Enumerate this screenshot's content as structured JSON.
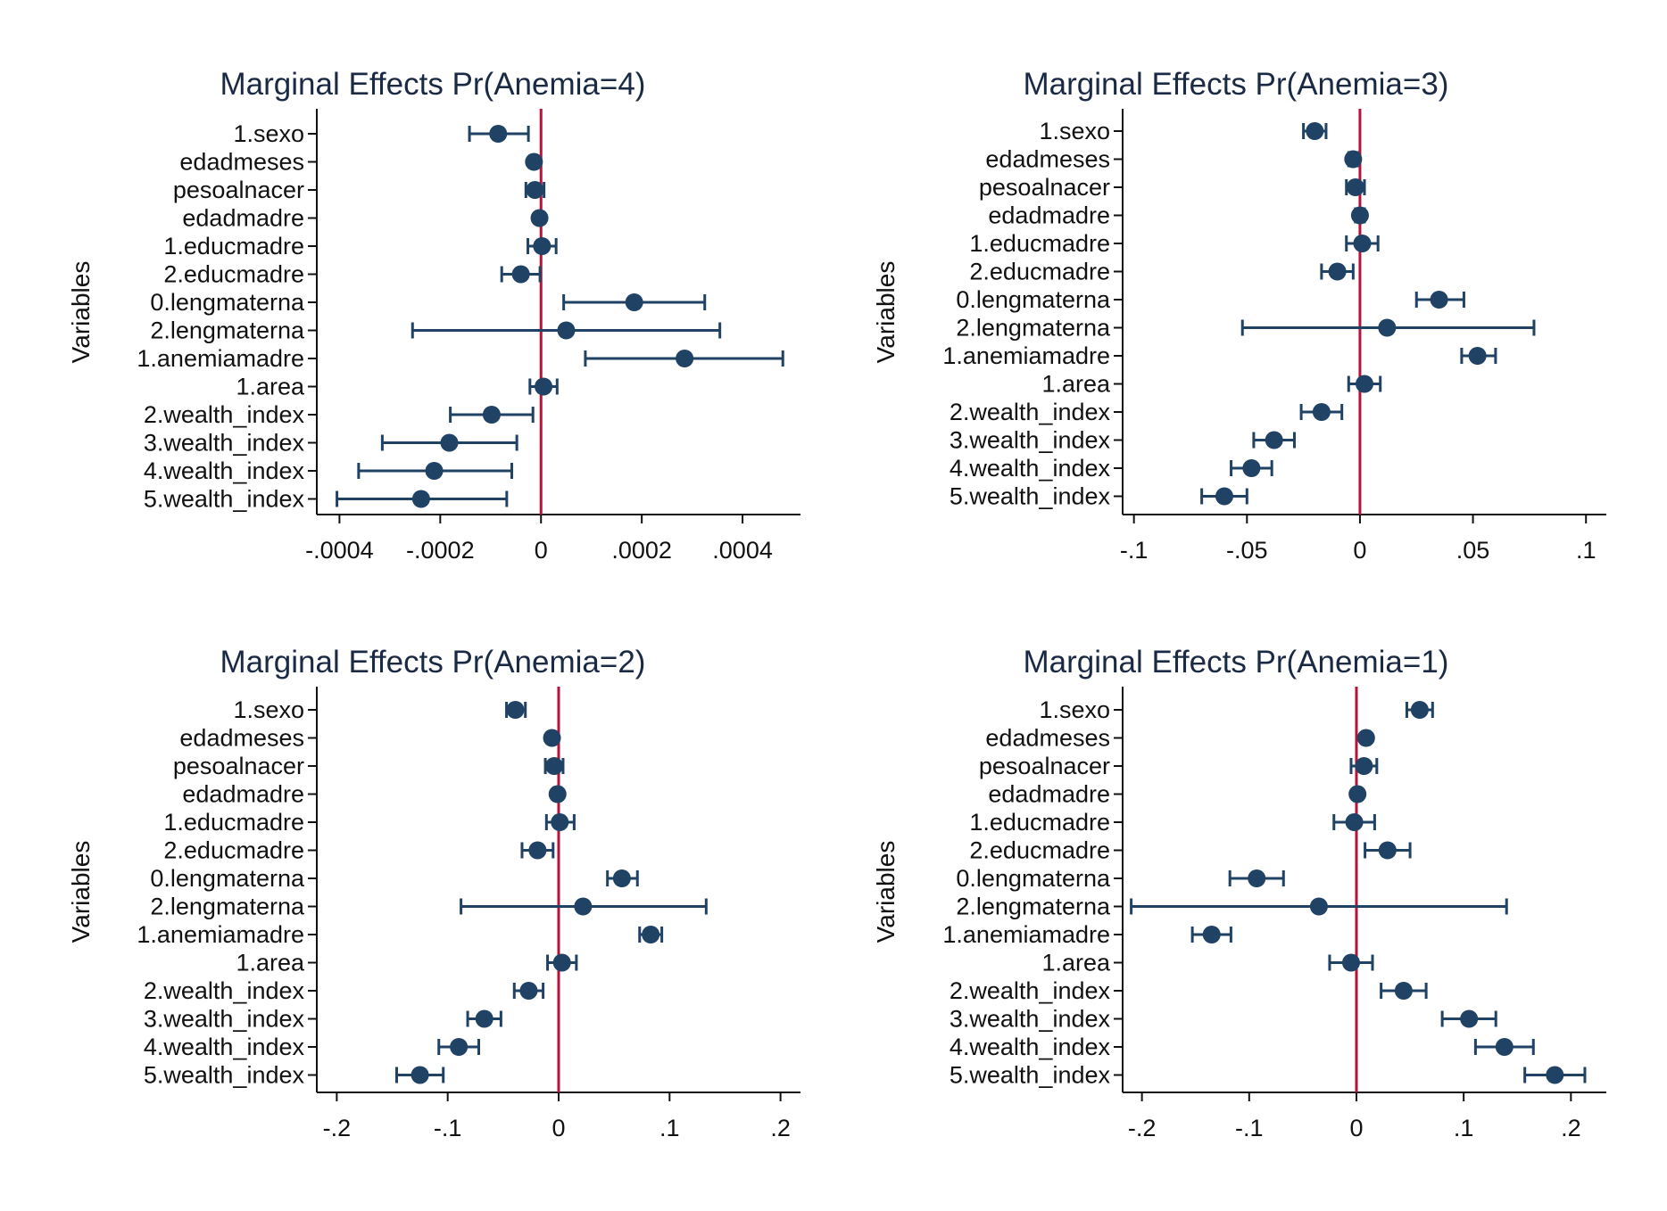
{
  "colors": {
    "marker": "#1f4265",
    "ci": "#1f4265",
    "zero_line": "#b5133a",
    "axis": "#111111",
    "title": "#1a2a44",
    "background": "#ffffff"
  },
  "chart_data": [
    {
      "type": "scatter",
      "title": "Marginal Effects Pr(Anemia=4)",
      "ylabel": "Variables",
      "xlabel": "",
      "categories": [
        "1.sexo",
        "edadmeses",
        "pesoalnacer",
        "edadmadre",
        "1.educmadre",
        "2.educmadre",
        "0.lengmaterna",
        "2.lengmaterna",
        "1.anemiamadre",
        "1.area",
        "2.wealth_index",
        "3.wealth_index",
        "4.wealth_index",
        "5.wealth_index"
      ],
      "estimates": [
        -8.5e-05,
        -1.4e-05,
        -1.2e-05,
        -3e-06,
        2e-06,
        -4e-05,
        0.000185,
        5e-05,
        0.000285,
        5e-06,
        -9.8e-05,
        -0.000182,
        -0.000212,
        -0.000238
      ],
      "ci_lower": [
        -0.000142,
        -1.8e-05,
        -3e-05,
        -8e-06,
        -2.6e-05,
        -7.8e-05,
        4.5e-05,
        -0.000255,
        8.8e-05,
        -2.2e-05,
        -0.00018,
        -0.000315,
        -0.000362,
        -0.000405
      ],
      "ci_upper": [
        -2.5e-05,
        -1e-05,
        6e-06,
        2e-06,
        3e-05,
        -2e-06,
        0.000325,
        0.000355,
        0.00048,
        3.2e-05,
        -1.6e-05,
        -4.8e-05,
        -5.8e-05,
        -6.8e-05
      ],
      "x_ticks": [
        -0.0004,
        -0.0002,
        0,
        0.0002,
        0.0004
      ],
      "x_tick_labels": [
        "-.0004",
        "-.0002",
        "0",
        ".0002",
        ".0004"
      ],
      "xlim": [
        -0.000445,
        0.000515
      ],
      "reference_line": 0,
      "grid": false,
      "legend": "none"
    },
    {
      "type": "scatter",
      "title": "Marginal Effects Pr(Anemia=3)",
      "ylabel": "Variables",
      "xlabel": "",
      "categories": [
        "1.sexo",
        "edadmeses",
        "pesoalnacer",
        "edadmadre",
        "1.educmadre",
        "2.educmadre",
        "0.lengmaterna",
        "2.lengmaterna",
        "1.anemiamadre",
        "1.area",
        "2.wealth_index",
        "3.wealth_index",
        "4.wealth_index",
        "5.wealth_index"
      ],
      "estimates": [
        -0.02,
        -0.003,
        -0.002,
        0.0,
        0.001,
        -0.01,
        0.035,
        0.012,
        0.052,
        0.002,
        -0.017,
        -0.038,
        -0.048,
        -0.06
      ],
      "ci_lower": [
        -0.025,
        -0.005,
        -0.006,
        -0.002,
        -0.006,
        -0.017,
        0.025,
        -0.052,
        0.045,
        -0.005,
        -0.026,
        -0.047,
        -0.057,
        -0.07
      ],
      "ci_upper": [
        -0.015,
        -0.001,
        0.002,
        0.002,
        0.008,
        -0.003,
        0.046,
        0.077,
        0.06,
        0.009,
        -0.008,
        -0.029,
        -0.039,
        -0.05
      ],
      "x_ticks": [
        -0.1,
        -0.05,
        0,
        0.05,
        0.1
      ],
      "x_tick_labels": [
        "-.1",
        "-.05",
        "0",
        ".05",
        ".1"
      ],
      "xlim": [
        -0.105,
        0.109
      ],
      "reference_line": 0,
      "grid": false,
      "legend": "none"
    },
    {
      "type": "scatter",
      "title": "Marginal Effects Pr(Anemia=2)",
      "ylabel": "Variables",
      "xlabel": "",
      "categories": [
        "1.sexo",
        "edadmeses",
        "pesoalnacer",
        "edadmadre",
        "1.educmadre",
        "2.educmadre",
        "0.lengmaterna",
        "2.lengmaterna",
        "1.anemiamadre",
        "1.area",
        "2.wealth_index",
        "3.wealth_index",
        "4.wealth_index",
        "5.wealth_index"
      ],
      "estimates": [
        -0.039,
        -0.006,
        -0.004,
        -0.001,
        0.001,
        -0.019,
        0.057,
        0.022,
        0.083,
        0.003,
        -0.027,
        -0.067,
        -0.09,
        -0.125
      ],
      "ci_lower": [
        -0.047,
        -0.008,
        -0.012,
        -0.004,
        -0.011,
        -0.033,
        0.044,
        -0.088,
        0.073,
        -0.01,
        -0.04,
        -0.082,
        -0.108,
        -0.146
      ],
      "ci_upper": [
        -0.03,
        -0.004,
        0.004,
        0.002,
        0.014,
        -0.005,
        0.071,
        0.133,
        0.093,
        0.016,
        -0.014,
        -0.052,
        -0.072,
        -0.104
      ],
      "x_ticks": [
        -0.2,
        -0.1,
        0,
        0.1,
        0.2
      ],
      "x_tick_labels": [
        "-.2",
        "-.1",
        "0",
        ".1",
        ".2"
      ],
      "xlim": [
        -0.218,
        0.218
      ],
      "reference_line": 0,
      "grid": false,
      "legend": "none"
    },
    {
      "type": "scatter",
      "title": "Marginal Effects Pr(Anemia=1)",
      "ylabel": "Variables",
      "xlabel": "",
      "categories": [
        "1.sexo",
        "edadmeses",
        "pesoalnacer",
        "edadmadre",
        "1.educmadre",
        "2.educmadre",
        "0.lengmaterna",
        "2.lengmaterna",
        "1.anemiamadre",
        "1.area",
        "2.wealth_index",
        "3.wealth_index",
        "4.wealth_index",
        "5.wealth_index"
      ],
      "estimates": [
        0.059,
        0.009,
        0.007,
        0.001,
        -0.002,
        0.029,
        -0.093,
        -0.035,
        -0.135,
        -0.005,
        0.044,
        0.105,
        0.138,
        0.185
      ],
      "ci_lower": [
        0.047,
        0.006,
        -0.005,
        -0.002,
        -0.021,
        0.008,
        -0.118,
        -0.21,
        -0.153,
        -0.025,
        0.023,
        0.08,
        0.111,
        0.157
      ],
      "ci_upper": [
        0.071,
        0.012,
        0.019,
        0.004,
        0.017,
        0.05,
        -0.068,
        0.14,
        -0.117,
        0.015,
        0.065,
        0.13,
        0.165,
        0.213
      ],
      "x_ticks": [
        -0.2,
        -0.1,
        0,
        0.1,
        0.2
      ],
      "x_tick_labels": [
        "-.2",
        "-.1",
        "0",
        ".1",
        ".2"
      ],
      "xlim": [
        -0.218,
        0.233
      ],
      "reference_line": 0,
      "grid": false,
      "legend": "none"
    }
  ]
}
